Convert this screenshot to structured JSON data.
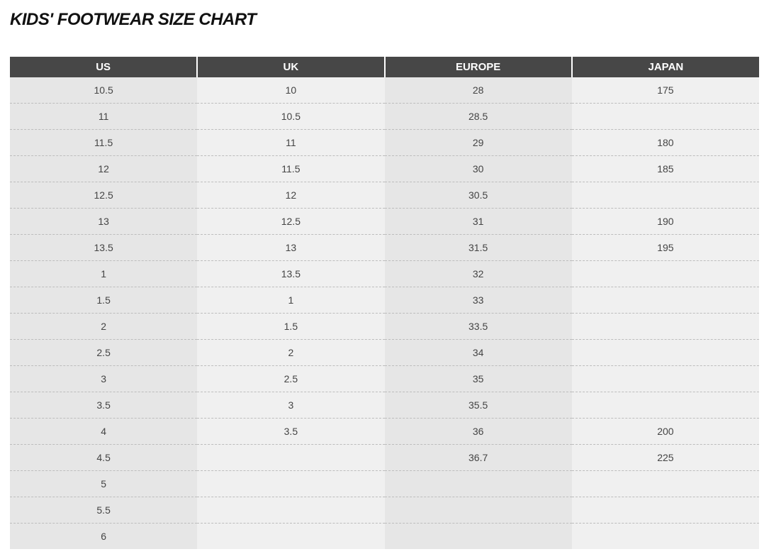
{
  "title": "KIDS' FOOTWEAR SIZE CHART",
  "colors": {
    "header_bg": "#474747",
    "header_text": "#ffffff",
    "row_shaded": "#e6e6e6",
    "row_light": "#f0f0f0",
    "body_text": "#444444",
    "divider": "#bdbdbd",
    "page_bg": "#ffffff",
    "title_color": "#111111"
  },
  "typography": {
    "title_fontsize": 24,
    "title_weight": 900,
    "header_fontsize": 15,
    "cell_fontsize": 14
  },
  "table": {
    "columns": [
      "US",
      "UK",
      "EUROPE",
      "JAPAN"
    ],
    "column_shaded": [
      true,
      false,
      true,
      false
    ],
    "rows": [
      [
        "10.5",
        "10",
        "28",
        "175"
      ],
      [
        "11",
        "10.5",
        "28.5",
        ""
      ],
      [
        "11.5",
        "11",
        "29",
        "180"
      ],
      [
        "12",
        "11.5",
        "30",
        "185"
      ],
      [
        "12.5",
        "12",
        "30.5",
        ""
      ],
      [
        "13",
        "12.5",
        "31",
        "190"
      ],
      [
        "13.5",
        "13",
        "31.5",
        "195"
      ],
      [
        "1",
        "13.5",
        "32",
        ""
      ],
      [
        "1.5",
        "1",
        "33",
        ""
      ],
      [
        "2",
        "1.5",
        "33.5",
        ""
      ],
      [
        "2.5",
        "2",
        "34",
        ""
      ],
      [
        "3",
        "2.5",
        "35",
        ""
      ],
      [
        "3.5",
        "3",
        "35.5",
        ""
      ],
      [
        "4",
        "3.5",
        "36",
        "200"
      ],
      [
        "4.5",
        "",
        "36.7",
        "225"
      ],
      [
        "5",
        "",
        "",
        ""
      ],
      [
        "5.5",
        "",
        "",
        ""
      ],
      [
        "6",
        "",
        "",
        ""
      ]
    ]
  }
}
